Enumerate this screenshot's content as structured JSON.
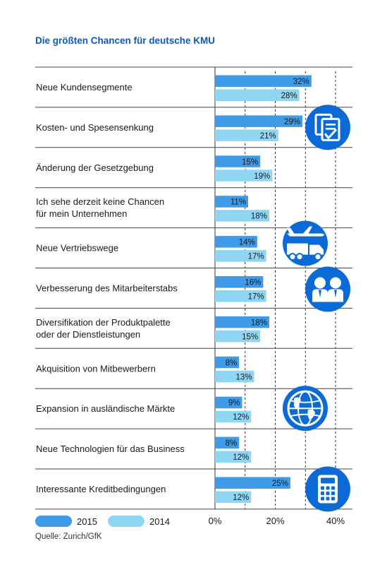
{
  "chart_data": {
    "type": "bar",
    "orientation": "horizontal",
    "title": "Die größten Chancen für deutsche KMU",
    "categories": [
      [
        "Neue Kundensegmente"
      ],
      [
        "Kosten- und Spesensenkung"
      ],
      [
        "Änderung der Gesetzgebung"
      ],
      [
        "Ich sehe derzeit keine Chancen",
        "für mein Unternehmen"
      ],
      [
        "Neue Vertriebswege"
      ],
      [
        "Verbesserung des Mitarbeiterstabs"
      ],
      [
        "Diversifikation der Produktpalette",
        "oder der Dienstleistungen"
      ],
      [
        "Akquisition von Mitbewerbern"
      ],
      [
        "Expansion in ausländische Märkte"
      ],
      [
        "Neue Technologien für das Business"
      ],
      [
        "Interessante Kreditbedingungen"
      ]
    ],
    "series": [
      {
        "name": "2015",
        "color": "#3f9ae8",
        "values": [
          32,
          29,
          15,
          11,
          14,
          16,
          18,
          8,
          9,
          8,
          25
        ]
      },
      {
        "name": "2014",
        "color": "#8fd6f5",
        "values": [
          28,
          21,
          19,
          18,
          17,
          17,
          15,
          13,
          12,
          12,
          12
        ]
      }
    ],
    "value_suffix": "%",
    "xlim": [
      0,
      40
    ],
    "xticks": [
      "0%",
      "20%",
      "40%"
    ],
    "grid": true,
    "legend_position": "bottom",
    "icons": [
      {
        "category_index": 1,
        "name": "document-check-icon"
      },
      {
        "category_index": 4,
        "name": "airplane-truck-icon"
      },
      {
        "category_index": 5,
        "name": "people-icon"
      },
      {
        "category_index": 8,
        "name": "globe-icon"
      },
      {
        "category_index": 10,
        "name": "calculator-icon"
      }
    ],
    "icon_color": "#0b6ad6"
  },
  "source": "Quelle: Zurich/GfK"
}
